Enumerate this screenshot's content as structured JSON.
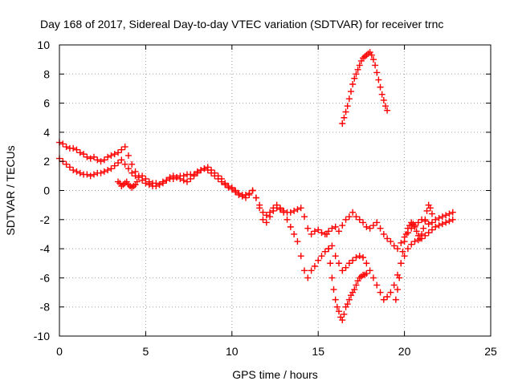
{
  "chart_data": {
    "type": "scatter",
    "title": "Day 168 of 2017, Sidereal Day-to-day VTEC variation (SDTVAR) for receiver trnc",
    "xlabel": "GPS time / hours",
    "ylabel": "SDTVAR / TECUs",
    "xlim": [
      0,
      25
    ],
    "ylim": [
      -10,
      10
    ],
    "xticks": [
      0,
      5,
      10,
      15,
      20,
      25
    ],
    "yticks": [
      -10,
      -8,
      -6,
      -4,
      -2,
      0,
      2,
      4,
      6,
      8,
      10
    ],
    "grid": true,
    "marker": "+",
    "color": "#ff0000",
    "series": [
      {
        "x": [
          0.0,
          0.2,
          0.4,
          0.6,
          0.8,
          1.0,
          1.2,
          1.4,
          1.6,
          1.8,
          2.0,
          2.2,
          2.4,
          2.6,
          2.8,
          3.0,
          3.2,
          3.4,
          3.6,
          3.8,
          4.0,
          4.2,
          4.4,
          4.6,
          4.8,
          5.0,
          5.2,
          5.4,
          5.6,
          5.8,
          6.0,
          6.2,
          6.4,
          6.6,
          6.8,
          7.0,
          7.2,
          7.4,
          7.6,
          7.8,
          8.0,
          8.2,
          8.4,
          8.6,
          8.8,
          9.0,
          9.2,
          9.4,
          9.6,
          9.8,
          10.0,
          10.2,
          10.4,
          10.6,
          10.8,
          11.0,
          11.2,
          11.4,
          11.6,
          11.8,
          12.0,
          12.2,
          12.4,
          12.6,
          12.8,
          13.0,
          13.2,
          13.4,
          13.6,
          13.8,
          14.0,
          14.2,
          14.4,
          14.6,
          14.8,
          15.0,
          15.2,
          15.4,
          15.6,
          15.8,
          16.0,
          16.2,
          16.4,
          16.6,
          16.8,
          17.0,
          17.2,
          17.4,
          17.6,
          17.8,
          18.0,
          18.2,
          18.4,
          18.6,
          18.8,
          19.0,
          19.2,
          19.4,
          19.6,
          19.8,
          20.0,
          20.2,
          20.4,
          20.6,
          20.8,
          21.0,
          21.2,
          21.4,
          21.6,
          21.8,
          22.0,
          22.2,
          22.4,
          22.6,
          22.8
        ],
        "y": [
          3.3,
          3.2,
          3.0,
          2.9,
          2.9,
          2.8,
          2.6,
          2.5,
          2.3,
          2.2,
          2.3,
          2.1,
          2.0,
          2.1,
          2.3,
          2.4,
          2.5,
          2.6,
          2.8,
          3.0,
          2.4,
          1.8,
          1.3,
          1.0,
          1.0,
          0.8,
          0.6,
          0.5,
          0.5,
          0.4,
          0.6,
          0.7,
          0.8,
          0.8,
          0.9,
          1.0,
          1.0,
          1.1,
          1.1,
          1.1,
          1.3,
          1.4,
          1.5,
          1.6,
          1.4,
          1.2,
          1.0,
          0.8,
          0.5,
          0.3,
          0.2,
          0.0,
          -0.2,
          -0.3,
          -0.3,
          -0.2,
          0.0,
          -0.5,
          -1.0,
          -1.5,
          -1.7,
          -1.5,
          -1.2,
          -1.2,
          -1.3,
          -1.4,
          -1.5,
          -1.5,
          -1.4,
          -1.3,
          -1.2,
          -1.8,
          -2.6,
          -3.0,
          -2.8,
          -2.7,
          -2.9,
          -3.0,
          -2.8,
          -2.6,
          -2.5,
          -2.8,
          -2.4,
          -2.0,
          -1.8,
          -1.5,
          -1.8,
          -2.0,
          -2.2,
          -2.5,
          -2.6,
          -2.4,
          -2.2,
          -2.6,
          -3.0,
          -3.3,
          -3.5,
          -3.8,
          -4.0,
          -3.6,
          -3.2,
          -2.9,
          -2.6,
          -2.4,
          -2.2,
          -2.0,
          -2.1,
          -2.3,
          -2.2,
          -2.0,
          -1.9,
          -1.8,
          -1.7,
          -1.6,
          -1.5
        ]
      },
      {
        "x": [
          0.0,
          0.2,
          0.4,
          0.6,
          0.8,
          1.0,
          1.2,
          1.4,
          1.6,
          1.8,
          2.0,
          2.2,
          2.4,
          2.6,
          2.8,
          3.0,
          3.2,
          3.4,
          3.6,
          3.8,
          4.0,
          4.2,
          4.4,
          4.6,
          4.8,
          5.0,
          5.2,
          5.4,
          5.6,
          5.8,
          6.0,
          6.2,
          6.4,
          6.6,
          6.8,
          7.0,
          7.2,
          7.4,
          7.6,
          7.8,
          8.0,
          8.2,
          8.4,
          8.6,
          8.8,
          9.0,
          9.2,
          9.4,
          9.6,
          9.8,
          10.0,
          10.2,
          10.4,
          10.6,
          10.8,
          11.0,
          11.2,
          11.4,
          11.6,
          11.8,
          12.0,
          12.2,
          12.4,
          12.6,
          12.8,
          13.0,
          13.2,
          13.4,
          13.6,
          13.8,
          14.0,
          14.2,
          14.4,
          14.6,
          14.8,
          15.0,
          15.2,
          15.4,
          15.6,
          15.8,
          16.0,
          16.2,
          16.4,
          16.6,
          16.8,
          17.0,
          17.2,
          17.4,
          17.6,
          17.8,
          18.0,
          18.2,
          18.4,
          18.6,
          18.8,
          19.0,
          19.2,
          19.4,
          19.6,
          19.8,
          20.0,
          20.2,
          20.4,
          20.6,
          20.8,
          21.0,
          21.2,
          21.4,
          21.6,
          21.8,
          22.0,
          22.2,
          22.4,
          22.6,
          22.8
        ],
        "y": [
          2.2,
          2.0,
          1.8,
          1.6,
          1.4,
          1.3,
          1.2,
          1.1,
          1.1,
          1.0,
          1.1,
          1.2,
          1.2,
          1.3,
          1.4,
          1.5,
          1.7,
          1.9,
          2.1,
          1.8,
          1.5,
          1.2,
          1.0,
          0.9,
          0.7,
          0.5,
          0.4,
          0.3,
          0.3,
          0.4,
          0.5,
          0.7,
          0.9,
          1.0,
          0.9,
          0.8,
          0.7,
          0.6,
          0.8,
          1.0,
          1.2,
          1.4,
          1.5,
          1.4,
          1.2,
          1.0,
          0.8,
          0.6,
          0.4,
          0.2,
          0.1,
          -0.1,
          -0.3,
          -0.4,
          -0.5,
          -0.3,
          0.0,
          -0.5,
          -1.2,
          -2.0,
          -2.2,
          -1.8,
          -1.4,
          -1.0,
          -1.2,
          -1.5,
          -2.0,
          -2.5,
          -3.0,
          -3.5,
          -4.5,
          -5.5,
          -6.0,
          -5.5,
          -5.2,
          -4.8,
          -4.5,
          -4.2,
          -4.0,
          -3.8,
          -4.5,
          -5.0,
          -5.5,
          -5.3,
          -5.0,
          -4.8,
          -4.6,
          -4.5,
          -4.6,
          -5.0,
          -5.5,
          -6.0,
          -6.5,
          -7.0,
          -7.5,
          -7.3,
          -7.0,
          -6.5,
          -5.8,
          -5.0,
          -4.5,
          -4.0,
          -3.7,
          -3.5,
          -3.4,
          -3.3,
          -3.1,
          -2.9,
          -2.7,
          -2.5,
          -2.4,
          -2.3,
          -2.2,
          -2.1,
          -2.0
        ]
      },
      {
        "x": [
          3.4,
          3.5,
          3.6,
          3.7,
          3.8,
          3.9,
          4.0,
          4.1,
          4.2,
          4.3,
          4.4,
          4.5
        ],
        "y": [
          0.6,
          0.5,
          0.3,
          0.4,
          0.5,
          0.6,
          0.4,
          0.3,
          0.2,
          0.3,
          0.4,
          0.6
        ]
      },
      {
        "x": [
          15.5,
          15.6,
          15.7,
          15.8,
          15.9,
          16.0,
          16.1,
          16.2,
          16.3,
          16.4,
          16.5,
          16.6,
          16.7,
          16.8,
          16.9,
          17.0,
          17.1,
          17.2,
          17.3,
          17.4,
          17.5,
          17.6,
          17.7,
          17.8
        ],
        "y": [
          -3.0,
          -4.0,
          -5.0,
          -6.0,
          -6.8,
          -7.5,
          -8.0,
          -8.3,
          -8.7,
          -8.9,
          -8.5,
          -8.0,
          -7.8,
          -7.5,
          -7.2,
          -7.0,
          -6.8,
          -6.5,
          -6.2,
          -6.0,
          -5.9,
          -5.8,
          -5.8,
          -5.7
        ]
      },
      {
        "x": [
          16.4,
          16.5,
          16.6,
          16.7,
          16.8,
          16.9,
          17.0,
          17.1,
          17.2,
          17.3,
          17.4,
          17.5,
          17.6,
          17.7,
          17.8,
          17.9,
          18.0,
          18.1,
          18.2,
          18.3,
          18.4,
          18.5,
          18.6,
          18.7,
          18.8,
          18.9,
          19.0
        ],
        "y": [
          4.6,
          5.0,
          5.4,
          5.8,
          6.3,
          6.8,
          7.3,
          7.7,
          8.0,
          8.3,
          8.6,
          8.9,
          9.1,
          9.2,
          9.3,
          9.4,
          9.5,
          9.3,
          9.0,
          8.6,
          8.1,
          7.6,
          7.1,
          6.6,
          6.2,
          5.8,
          5.5
        ]
      },
      {
        "x": [
          19.5,
          19.6,
          19.7,
          19.8,
          19.9,
          20.0,
          20.1,
          20.2,
          20.3,
          20.4,
          20.5,
          20.6,
          20.7,
          20.8,
          20.9,
          21.0,
          21.1,
          21.2,
          21.3,
          21.4,
          21.5,
          21.6
        ],
        "y": [
          -7.5,
          -6.8,
          -6.0,
          -5.0,
          -4.2,
          -3.5,
          -3.0,
          -2.6,
          -2.4,
          -2.2,
          -2.3,
          -2.5,
          -2.8,
          -3.1,
          -3.3,
          -3.0,
          -2.6,
          -2.0,
          -1.4,
          -1.0,
          -1.2,
          -1.6
        ]
      }
    ]
  }
}
